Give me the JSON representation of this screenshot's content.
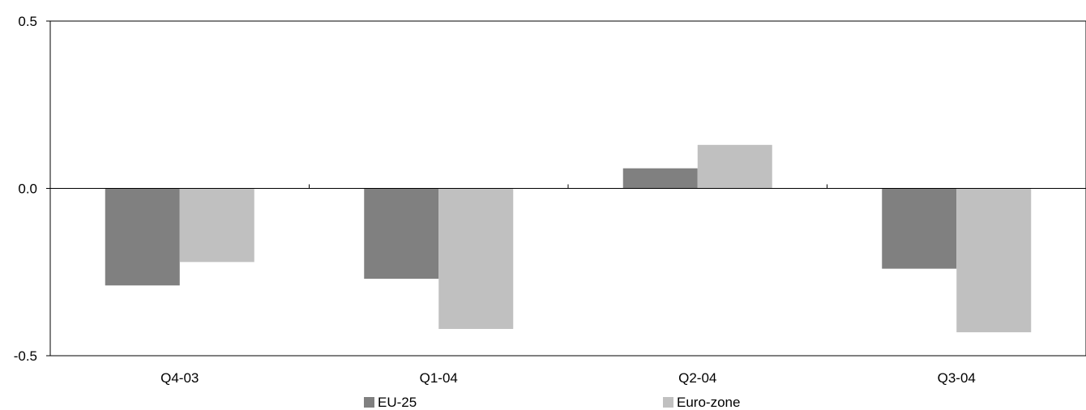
{
  "chart_data": {
    "type": "bar",
    "title": "",
    "xlabel": "",
    "ylabel": "",
    "categories": [
      "Q4-03",
      "Q1-04",
      "Q2-04",
      "Q3-04"
    ],
    "series": [
      {
        "name": "EU-25",
        "values": [
          -0.29,
          -0.27,
          0.06,
          -0.24
        ],
        "color": "#808080"
      },
      {
        "name": "Euro-zone",
        "values": [
          -0.22,
          -0.42,
          0.13,
          -0.43
        ],
        "color": "#c0c0c0"
      }
    ],
    "ylim": [
      -0.5,
      0.5
    ],
    "yticks": [
      "0.5",
      "0.0",
      "-0.5"
    ],
    "ytick_values": [
      0.5,
      0.0,
      -0.5
    ],
    "grid": false,
    "legend_position": "bottom"
  }
}
